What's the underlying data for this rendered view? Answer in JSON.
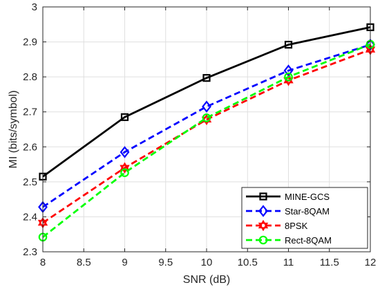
{
  "chart_data": {
    "type": "line",
    "title": "",
    "xlabel": "SNR (dB)",
    "ylabel": "MI (bits/symbol)",
    "xlim": [
      8,
      12
    ],
    "ylim": [
      2.3,
      3.0
    ],
    "grid": true,
    "legend_position": "bottom-right",
    "x": [
      8,
      9,
      10,
      11,
      12
    ],
    "xticks": [
      "8",
      "8.5",
      "9",
      "9.5",
      "10",
      "10.5",
      "11",
      "11.5",
      "12"
    ],
    "yticks": [
      "2.3",
      "2.4",
      "2.5",
      "2.6",
      "2.7",
      "2.8",
      "2.9",
      "3"
    ],
    "series": [
      {
        "name": "MINE-GCS",
        "values": [
          2.515,
          2.685,
          2.797,
          2.892,
          2.942
        ],
        "color": "#000000",
        "dash": "solid",
        "marker": "square"
      },
      {
        "name": "Star-8QAM",
        "values": [
          2.428,
          2.585,
          2.715,
          2.818,
          2.892
        ],
        "color": "#0000ff",
        "dash": "dashed",
        "marker": "diamond"
      },
      {
        "name": "8PSK",
        "values": [
          2.383,
          2.54,
          2.678,
          2.79,
          2.878
        ],
        "color": "#ff0000",
        "dash": "dashed",
        "marker": "hexagram"
      },
      {
        "name": "Rect-8QAM",
        "values": [
          2.342,
          2.526,
          2.683,
          2.8,
          2.893
        ],
        "color": "#00ff00",
        "dash": "dashed",
        "marker": "circle"
      }
    ]
  }
}
